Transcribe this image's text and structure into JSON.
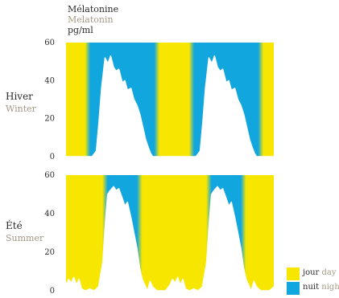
{
  "header": {
    "title_fr": "Mélatonine",
    "title_en": "Melatonin",
    "unit": "pg/ml"
  },
  "colors": {
    "day": "#f7e600",
    "night": "#12a6df",
    "curve": "#ffffff",
    "text_dark": "#2b2b2b",
    "text_grey": "#a29a86"
  },
  "legend": {
    "day_fr": "jour",
    "day_en": "day",
    "night_fr": "nuit",
    "night_en": "night"
  },
  "chart_data": [
    {
      "type": "area",
      "label_fr": "Hiver",
      "label_en": "Winter",
      "ylim": [
        0,
        60
      ],
      "yticks": [
        "0",
        "20",
        "40",
        "60"
      ],
      "xlim": [
        0,
        48
      ],
      "night_periods": [
        [
          5,
          21
        ],
        [
          29,
          45
        ]
      ],
      "x": [
        0,
        1.5,
        3,
        4.5,
        6,
        7,
        7.6,
        8.2,
        9,
        9.7,
        10.3,
        11,
        11.6,
        12.2,
        13,
        13.6,
        14.2,
        15,
        15.7,
        16.4,
        17.1,
        17.8,
        18.4,
        19,
        19.5,
        20,
        21,
        22,
        24,
        26,
        28,
        30,
        31,
        31.6,
        32.2,
        33,
        33.7,
        34.3,
        35,
        35.6,
        36.2,
        37,
        37.6,
        38.2,
        39,
        39.7,
        40.4,
        41.1,
        41.8,
        42.4,
        43,
        43.5,
        44,
        45,
        46,
        48
      ],
      "y": [
        0,
        0,
        0,
        0,
        0,
        3,
        18,
        36,
        52,
        49,
        53,
        47,
        45,
        46,
        39,
        40,
        35,
        36,
        30,
        27,
        22,
        15,
        9,
        5,
        2,
        0,
        0,
        0,
        0,
        0,
        0,
        0,
        3,
        18,
        36,
        52,
        49,
        53,
        47,
        45,
        46,
        39,
        40,
        35,
        36,
        30,
        27,
        22,
        15,
        9,
        5,
        2,
        0,
        0,
        0,
        0
      ]
    },
    {
      "type": "area",
      "label_fr": "Été",
      "label_en": "Summer",
      "ylim": [
        0,
        60
      ],
      "yticks": [
        "0",
        "20",
        "40",
        "60"
      ],
      "xlim": [
        0,
        48
      ],
      "night_periods": [
        [
          9,
          17
        ],
        [
          33,
          41
        ]
      ],
      "x": [
        0,
        0.6,
        1.2,
        1.8,
        2.4,
        3,
        3.6,
        4.5,
        5.5,
        6.5,
        7.5,
        8.5,
        9,
        9.6,
        10.2,
        11,
        11.6,
        12.2,
        13,
        13.6,
        14.2,
        15,
        15.7,
        16.4,
        17,
        17.6,
        18.2,
        18.8,
        19.4,
        20,
        21,
        22,
        23,
        24,
        24.6,
        25.2,
        25.8,
        26.4,
        27,
        27.6,
        28.5,
        29.5,
        30.5,
        31.5,
        32.5,
        33,
        33.6,
        34.2,
        35,
        35.6,
        36.2,
        37,
        37.6,
        38.2,
        39,
        39.7,
        40.4,
        41,
        41.6,
        42.2,
        42.8,
        43.4,
        44,
        45,
        46,
        47,
        48
      ],
      "y": [
        3,
        6,
        4,
        7,
        3,
        6,
        1,
        0,
        1,
        0,
        2,
        15,
        33,
        50,
        52,
        54,
        52,
        53,
        48,
        44,
        46,
        38,
        30,
        22,
        12,
        6,
        3,
        0,
        5,
        2,
        0,
        0,
        0,
        3,
        6,
        4,
        7,
        3,
        6,
        1,
        0,
        1,
        0,
        2,
        15,
        33,
        50,
        52,
        54,
        52,
        53,
        48,
        44,
        46,
        38,
        30,
        22,
        12,
        6,
        3,
        0,
        5,
        2,
        0,
        0,
        0,
        2
      ]
    }
  ]
}
